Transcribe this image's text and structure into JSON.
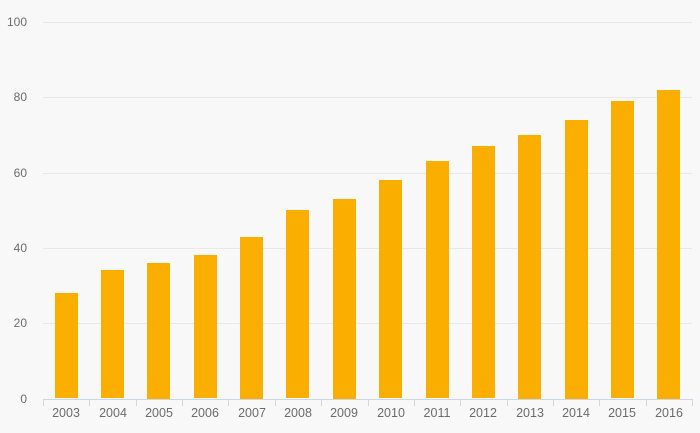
{
  "chart_data": {
    "type": "bar",
    "categories": [
      "2003",
      "2004",
      "2005",
      "2006",
      "2007",
      "2008",
      "2009",
      "2010",
      "2011",
      "2012",
      "2013",
      "2014",
      "2015",
      "2016"
    ],
    "values": [
      28,
      34,
      36,
      38,
      43,
      50,
      53,
      58,
      63,
      67,
      70,
      74,
      79,
      82
    ],
    "title": "",
    "xlabel": "",
    "ylabel": "",
    "ylim": [
      0,
      100
    ],
    "yticks": [
      0,
      20,
      40,
      60,
      80,
      100
    ],
    "grid": true,
    "legend": false,
    "colors": {
      "bar": "#F9AE00",
      "background": "#F8F8F8",
      "gridline": "#E8E8E8",
      "axis_line": "#CCD6EB",
      "label": "#6B6B6B"
    }
  }
}
